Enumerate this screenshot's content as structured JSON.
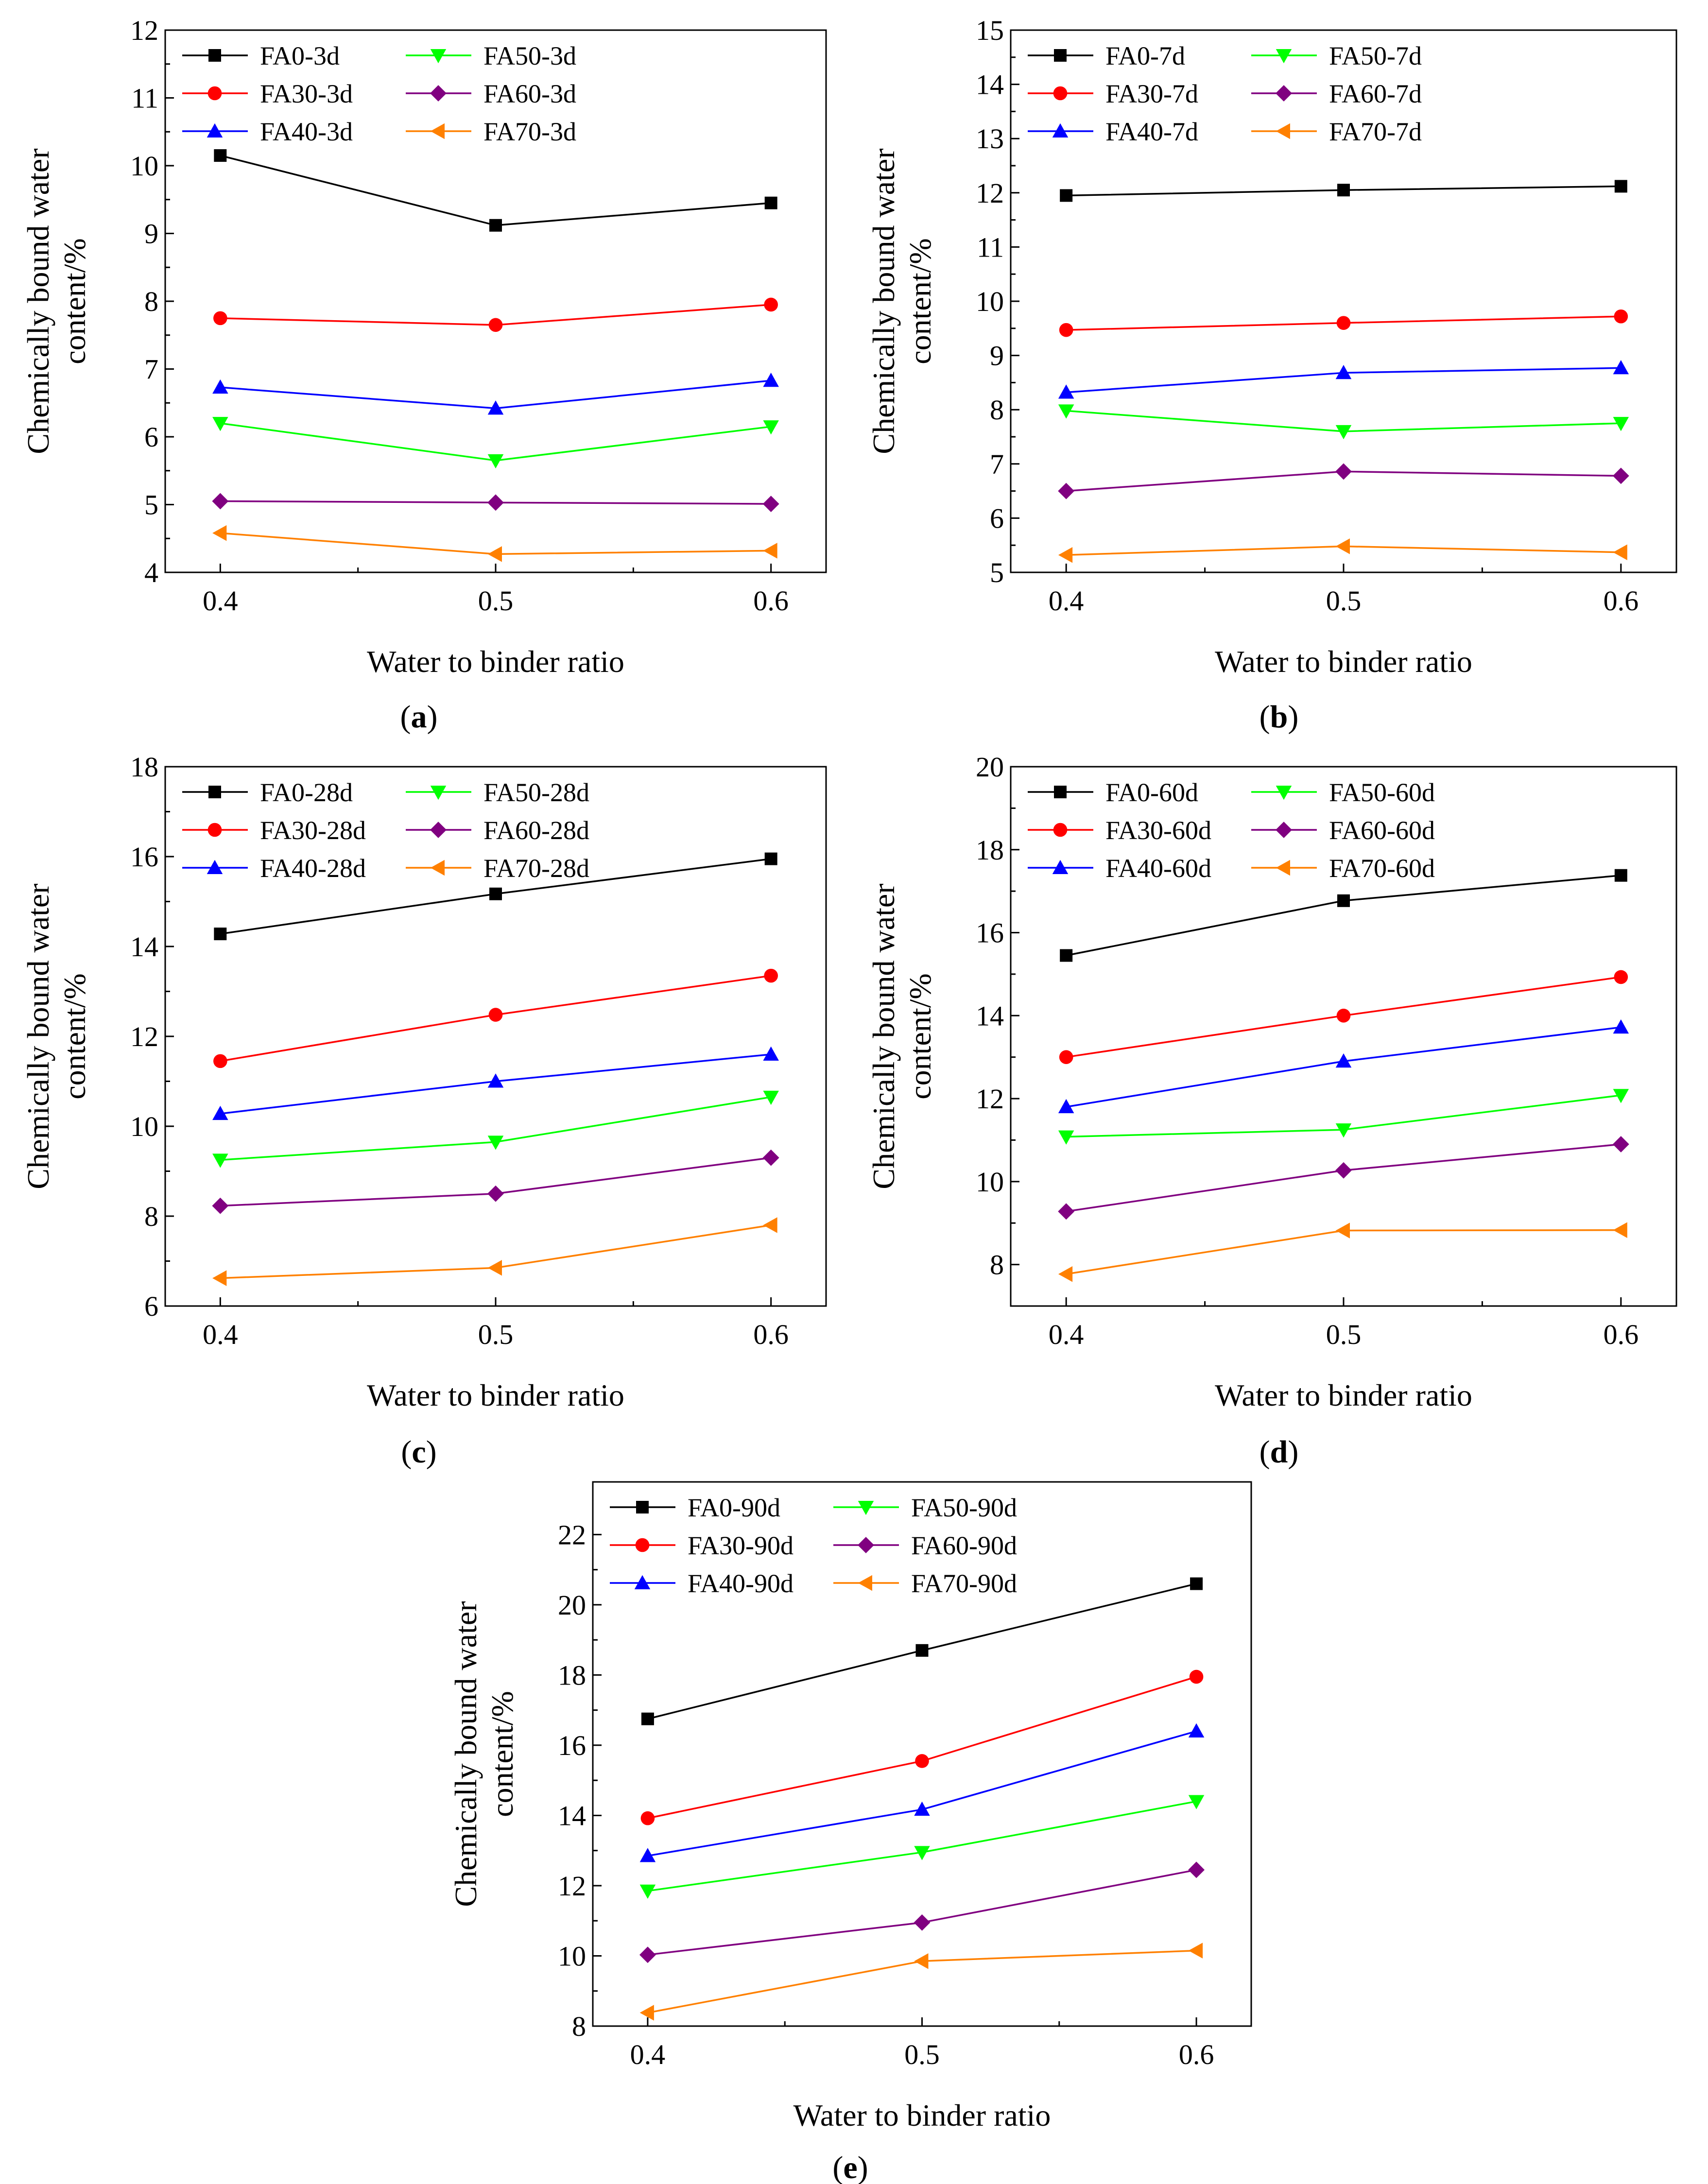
{
  "figure": {
    "panels": [
      "a",
      "b",
      "c",
      "d",
      "e"
    ]
  },
  "chart_data": [
    {
      "type": "line",
      "caption_letter": "a",
      "xlabel": "Water to binder ratio",
      "ylabel_line1": "Chemically bound water",
      "ylabel_line2": "content/%",
      "x": [
        0.4,
        0.5,
        0.6
      ],
      "xlim": [
        0.38,
        0.62
      ],
      "xticks": [
        0.4,
        0.5,
        0.6
      ],
      "xtick_labels": [
        "0.4",
        "0.5",
        "0.6"
      ],
      "ylim": [
        4,
        12
      ],
      "yticks": [
        4,
        5,
        6,
        7,
        8,
        9,
        10,
        11,
        12
      ],
      "ytick_labels": [
        "4",
        "5",
        "6",
        "7",
        "8",
        "9",
        "10",
        "11",
        "12"
      ],
      "series": [
        {
          "name": "FA0-3d",
          "values": [
            10.15,
            9.12,
            9.45
          ]
        },
        {
          "name": "FA30-3d",
          "values": [
            7.75,
            7.65,
            7.95
          ]
        },
        {
          "name": "FA40-3d",
          "values": [
            6.73,
            6.42,
            6.83
          ]
        },
        {
          "name": "FA50-3d",
          "values": [
            6.2,
            5.65,
            6.15
          ]
        },
        {
          "name": "FA60-3d",
          "values": [
            5.05,
            5.03,
            5.01
          ]
        },
        {
          "name": "FA70-3d",
          "values": [
            4.58,
            4.27,
            4.32
          ]
        }
      ]
    },
    {
      "type": "line",
      "caption_letter": "b",
      "xlabel": "Water to binder ratio",
      "ylabel_line1": "Chemically bound water",
      "ylabel_line2": "content/%",
      "x": [
        0.4,
        0.5,
        0.6
      ],
      "xlim": [
        0.38,
        0.62
      ],
      "xticks": [
        0.4,
        0.5,
        0.6
      ],
      "xtick_labels": [
        "0.4",
        "0.5",
        "0.6"
      ],
      "ylim": [
        5,
        15
      ],
      "yticks": [
        5,
        6,
        7,
        8,
        9,
        10,
        11,
        12,
        13,
        14,
        15
      ],
      "ytick_labels": [
        "5",
        "6",
        "7",
        "8",
        "9",
        "10",
        "11",
        "12",
        "13",
        "14",
        "15"
      ],
      "series": [
        {
          "name": "FA0-7d",
          "values": [
            11.95,
            12.05,
            12.12
          ]
        },
        {
          "name": "FA30-7d",
          "values": [
            9.47,
            9.6,
            9.72
          ]
        },
        {
          "name": "FA40-7d",
          "values": [
            8.32,
            8.68,
            8.77
          ]
        },
        {
          "name": "FA50-7d",
          "values": [
            7.98,
            7.6,
            7.75
          ]
        },
        {
          "name": "FA60-7d",
          "values": [
            6.5,
            6.86,
            6.78
          ]
        },
        {
          "name": "FA70-7d",
          "values": [
            5.32,
            5.48,
            5.37
          ]
        }
      ]
    },
    {
      "type": "line",
      "caption_letter": "c",
      "xlabel": "Water to binder ratio",
      "ylabel_line1": "Chemically bound water",
      "ylabel_line2": "content/%",
      "x": [
        0.4,
        0.5,
        0.6
      ],
      "xlim": [
        0.38,
        0.62
      ],
      "xticks": [
        0.4,
        0.5,
        0.6
      ],
      "xtick_labels": [
        "0.4",
        "0.5",
        "0.6"
      ],
      "ylim": [
        6,
        18
      ],
      "yticks": [
        6,
        8,
        10,
        12,
        14,
        16,
        18
      ],
      "ytick_labels": [
        "6",
        "8",
        "10",
        "12",
        "14",
        "16",
        "18"
      ],
      "series": [
        {
          "name": "FA0-28d",
          "values": [
            14.28,
            15.17,
            15.95
          ]
        },
        {
          "name": "FA30-28d",
          "values": [
            11.45,
            12.48,
            13.35
          ]
        },
        {
          "name": "FA40-28d",
          "values": [
            10.28,
            11.0,
            11.6
          ]
        },
        {
          "name": "FA50-28d",
          "values": [
            9.25,
            9.65,
            10.65
          ]
        },
        {
          "name": "FA60-28d",
          "values": [
            8.23,
            8.5,
            9.3
          ]
        },
        {
          "name": "FA70-28d",
          "values": [
            6.62,
            6.85,
            7.8
          ]
        }
      ]
    },
    {
      "type": "line",
      "caption_letter": "d",
      "xlabel": "Water to binder ratio",
      "ylabel_line1": "Chemically bound water",
      "ylabel_line2": "content/%",
      "x": [
        0.4,
        0.5,
        0.6
      ],
      "xlim": [
        0.38,
        0.62
      ],
      "xticks": [
        0.4,
        0.5,
        0.6
      ],
      "xtick_labels": [
        "0.4",
        "0.5",
        "0.6"
      ],
      "ylim": [
        7,
        20
      ],
      "yticks": [
        8,
        10,
        12,
        14,
        16,
        18,
        20
      ],
      "ytick_labels": [
        "8",
        "10",
        "12",
        "14",
        "16",
        "18",
        "20"
      ],
      "series": [
        {
          "name": "FA0-60d",
          "values": [
            15.45,
            16.77,
            17.38
          ]
        },
        {
          "name": "FA30-60d",
          "values": [
            13.0,
            14.0,
            14.93
          ]
        },
        {
          "name": "FA40-60d",
          "values": [
            11.8,
            12.9,
            13.72
          ]
        },
        {
          "name": "FA50-60d",
          "values": [
            11.08,
            11.25,
            12.08
          ]
        },
        {
          "name": "FA60-60d",
          "values": [
            9.28,
            10.27,
            10.9
          ]
        },
        {
          "name": "FA70-60d",
          "values": [
            7.77,
            8.82,
            8.83
          ]
        }
      ]
    },
    {
      "type": "line",
      "caption_letter": "e",
      "xlabel": "Water to binder ratio",
      "ylabel_line1": "Chemically bound water",
      "ylabel_line2": "content/%",
      "x": [
        0.4,
        0.5,
        0.6
      ],
      "xlim": [
        0.38,
        0.62
      ],
      "xticks": [
        0.4,
        0.5,
        0.6
      ],
      "xtick_labels": [
        "0.4",
        "0.5",
        "0.6"
      ],
      "ylim": [
        8,
        23.5
      ],
      "yticks": [
        8,
        10,
        12,
        14,
        16,
        18,
        20,
        22
      ],
      "ytick_labels": [
        "8",
        "10",
        "12",
        "14",
        "16",
        "18",
        "20",
        "22"
      ],
      "series": [
        {
          "name": "FA0-90d",
          "values": [
            16.75,
            18.7,
            20.6
          ]
        },
        {
          "name": "FA30-90d",
          "values": [
            13.92,
            15.55,
            17.95
          ]
        },
        {
          "name": "FA40-90d",
          "values": [
            12.85,
            14.17,
            16.4
          ]
        },
        {
          "name": "FA50-90d",
          "values": [
            11.85,
            12.95,
            14.4
          ]
        },
        {
          "name": "FA60-90d",
          "values": [
            10.03,
            10.95,
            12.45
          ]
        },
        {
          "name": "FA70-90d",
          "values": [
            8.38,
            9.85,
            10.15
          ]
        }
      ]
    }
  ],
  "series_styles": [
    {
      "color": "#000000",
      "marker": "square"
    },
    {
      "color": "#ff0000",
      "marker": "circle"
    },
    {
      "color": "#0000ff",
      "marker": "triangle-up"
    },
    {
      "color": "#00ff00",
      "marker": "triangle-down"
    },
    {
      "color": "#800080",
      "marker": "diamond"
    },
    {
      "color": "#ff8000",
      "marker": "triangle-left"
    }
  ]
}
